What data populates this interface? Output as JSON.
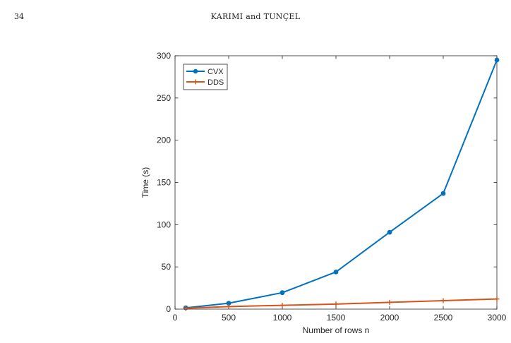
{
  "header": {
    "page_number": "34",
    "running_head": "KARIMI and TUNÇEL"
  },
  "chart_data": {
    "type": "line",
    "xlabel": "Number of rows n",
    "ylabel": "Time (s)",
    "xlim": [
      0,
      3000
    ],
    "ylim": [
      0,
      300
    ],
    "xticks": [
      0,
      500,
      1000,
      1500,
      2000,
      2500,
      3000
    ],
    "yticks": [
      0,
      50,
      100,
      150,
      200,
      250,
      300
    ],
    "grid": false,
    "legend_position": "top-left",
    "series": [
      {
        "name": "CVX",
        "color": "#0072BD",
        "marker": "circle",
        "x": [
          100,
          500,
          1000,
          1500,
          2000,
          2500,
          3000
        ],
        "y": [
          1.5,
          7,
          19.5,
          44,
          91,
          137,
          295
        ]
      },
      {
        "name": "DDS",
        "color": "#D95319",
        "marker": "plus",
        "x": [
          100,
          500,
          1000,
          1500,
          2000,
          2500,
          3000
        ],
        "y": [
          1,
          3,
          4.5,
          6,
          8,
          10,
          12
        ]
      }
    ]
  }
}
